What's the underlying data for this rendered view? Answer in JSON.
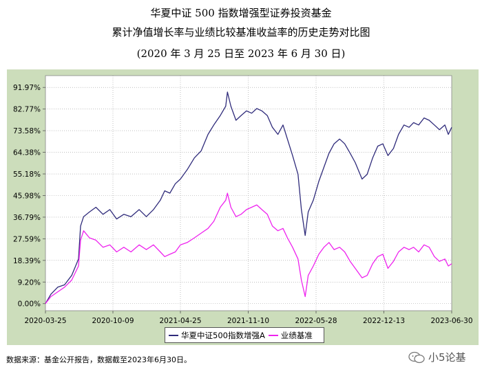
{
  "titles": {
    "line1": "华夏中证 500 指数增强型证券投资基金",
    "line2": "累计净值增长率与业绩比较基准收益率的历史走势对比图",
    "line3": "(2020 年 3 月 25 日至 2023 年 6 月 30 日)"
  },
  "source_note": "数据来源：基金公开报告，数据截至2023年6月30日。",
  "watermark": "小5论基",
  "colors": {
    "fund": "#2e2a7a",
    "benchmark": "#ee22ee",
    "plot_bg": "#ffffff",
    "frame_bg": "#ccddbb"
  },
  "chart_data": {
    "type": "line",
    "title": "",
    "xlabel": "",
    "ylabel": "",
    "x_range": [
      "2020-03-25",
      "2023-06-30"
    ],
    "ylim": [
      -3,
      97
    ],
    "y_ticks": [
      "0.00%",
      "9.20%",
      "18.39%",
      "27.59%",
      "36.79%",
      "45.98%",
      "55.18%",
      "64.38%",
      "73.58%",
      "82.77%",
      "91.97%"
    ],
    "y_tick_values": [
      0,
      9.2,
      18.39,
      27.59,
      36.79,
      45.98,
      55.18,
      64.38,
      73.58,
      82.77,
      91.97
    ],
    "x_ticks": [
      "2020-03-25",
      "2020-10-09",
      "2021-04-25",
      "2021-11-10",
      "2022-05-28",
      "2022-12-13",
      "2023-06-30"
    ],
    "grid": true,
    "legend": "bottom-center",
    "series": [
      {
        "name": "华夏中证500指数增强A",
        "color": "#2e2a7a",
        "points": [
          [
            "2020-03-25",
            0
          ],
          [
            "2020-04-10",
            4
          ],
          [
            "2020-04-30",
            7
          ],
          [
            "2020-05-20",
            8
          ],
          [
            "2020-06-10",
            12
          ],
          [
            "2020-06-30",
            19
          ],
          [
            "2020-07-06",
            33
          ],
          [
            "2020-07-15",
            37
          ],
          [
            "2020-08-01",
            39
          ],
          [
            "2020-08-20",
            41
          ],
          [
            "2020-09-10",
            38
          ],
          [
            "2020-09-30",
            40
          ],
          [
            "2020-10-20",
            36
          ],
          [
            "2020-11-10",
            38
          ],
          [
            "2020-12-01",
            37
          ],
          [
            "2020-12-25",
            40
          ],
          [
            "2021-01-15",
            37
          ],
          [
            "2021-02-05",
            40
          ],
          [
            "2021-02-25",
            44
          ],
          [
            "2021-03-10",
            48
          ],
          [
            "2021-03-25",
            47
          ],
          [
            "2021-04-10",
            51
          ],
          [
            "2021-04-25",
            53
          ],
          [
            "2021-05-15",
            57
          ],
          [
            "2021-06-05",
            62
          ],
          [
            "2021-06-25",
            65
          ],
          [
            "2021-07-15",
            72
          ],
          [
            "2021-08-01",
            76
          ],
          [
            "2021-08-20",
            80
          ],
          [
            "2021-09-05",
            84
          ],
          [
            "2021-09-10",
            90
          ],
          [
            "2021-09-20",
            84
          ],
          [
            "2021-10-05",
            78
          ],
          [
            "2021-10-20",
            80
          ],
          [
            "2021-11-05",
            82
          ],
          [
            "2021-11-20",
            81
          ],
          [
            "2021-12-05",
            83
          ],
          [
            "2021-12-20",
            82
          ],
          [
            "2022-01-05",
            80
          ],
          [
            "2022-01-20",
            75
          ],
          [
            "2022-02-05",
            72
          ],
          [
            "2022-02-20",
            76
          ],
          [
            "2022-03-05",
            70
          ],
          [
            "2022-03-20",
            63
          ],
          [
            "2022-04-05",
            55
          ],
          [
            "2022-04-15",
            40
          ],
          [
            "2022-04-26",
            29
          ],
          [
            "2022-05-05",
            39
          ],
          [
            "2022-05-20",
            44
          ],
          [
            "2022-06-05",
            52
          ],
          [
            "2022-06-20",
            58
          ],
          [
            "2022-07-05",
            64
          ],
          [
            "2022-07-20",
            68
          ],
          [
            "2022-08-05",
            70
          ],
          [
            "2022-08-20",
            68
          ],
          [
            "2022-09-05",
            64
          ],
          [
            "2022-09-20",
            60
          ],
          [
            "2022-10-10",
            53
          ],
          [
            "2022-10-25",
            55
          ],
          [
            "2022-11-10",
            62
          ],
          [
            "2022-11-25",
            67
          ],
          [
            "2022-12-10",
            68
          ],
          [
            "2022-12-25",
            63
          ],
          [
            "2023-01-10",
            66
          ],
          [
            "2023-01-25",
            72
          ],
          [
            "2023-02-10",
            76
          ],
          [
            "2023-02-25",
            75
          ],
          [
            "2023-03-10",
            77
          ],
          [
            "2023-03-25",
            76
          ],
          [
            "2023-04-10",
            79
          ],
          [
            "2023-04-25",
            78
          ],
          [
            "2023-05-10",
            76
          ],
          [
            "2023-05-25",
            74
          ],
          [
            "2023-06-10",
            76
          ],
          [
            "2023-06-20",
            72
          ],
          [
            "2023-06-30",
            75
          ]
        ]
      },
      {
        "name": "业绩基准",
        "color": "#ee22ee",
        "points": [
          [
            "2020-03-25",
            0
          ],
          [
            "2020-04-10",
            3
          ],
          [
            "2020-04-30",
            5
          ],
          [
            "2020-05-20",
            7
          ],
          [
            "2020-06-10",
            10
          ],
          [
            "2020-06-30",
            16
          ],
          [
            "2020-07-06",
            27
          ],
          [
            "2020-07-15",
            31
          ],
          [
            "2020-08-01",
            28
          ],
          [
            "2020-08-20",
            27
          ],
          [
            "2020-09-10",
            24
          ],
          [
            "2020-09-30",
            25
          ],
          [
            "2020-10-20",
            22
          ],
          [
            "2020-11-10",
            24
          ],
          [
            "2020-12-01",
            22
          ],
          [
            "2020-12-25",
            25
          ],
          [
            "2021-01-15",
            23
          ],
          [
            "2021-02-05",
            25
          ],
          [
            "2021-02-25",
            22
          ],
          [
            "2021-03-10",
            20
          ],
          [
            "2021-03-25",
            21
          ],
          [
            "2021-04-10",
            22
          ],
          [
            "2021-04-25",
            25
          ],
          [
            "2021-05-15",
            26
          ],
          [
            "2021-06-05",
            28
          ],
          [
            "2021-06-25",
            30
          ],
          [
            "2021-07-15",
            32
          ],
          [
            "2021-08-01",
            35
          ],
          [
            "2021-08-20",
            41
          ],
          [
            "2021-09-05",
            44
          ],
          [
            "2021-09-10",
            47
          ],
          [
            "2021-09-20",
            41
          ],
          [
            "2021-10-05",
            37
          ],
          [
            "2021-10-20",
            38
          ],
          [
            "2021-11-05",
            40
          ],
          [
            "2021-11-20",
            41
          ],
          [
            "2021-12-05",
            42
          ],
          [
            "2021-12-20",
            40
          ],
          [
            "2022-01-05",
            38
          ],
          [
            "2022-01-20",
            33
          ],
          [
            "2022-02-05",
            31
          ],
          [
            "2022-02-20",
            32
          ],
          [
            "2022-03-05",
            28
          ],
          [
            "2022-03-20",
            24
          ],
          [
            "2022-04-05",
            19
          ],
          [
            "2022-04-15",
            10
          ],
          [
            "2022-04-26",
            3
          ],
          [
            "2022-05-05",
            12
          ],
          [
            "2022-05-20",
            16
          ],
          [
            "2022-06-05",
            21
          ],
          [
            "2022-06-20",
            24
          ],
          [
            "2022-07-05",
            26
          ],
          [
            "2022-07-20",
            23
          ],
          [
            "2022-08-05",
            24
          ],
          [
            "2022-08-20",
            22
          ],
          [
            "2022-09-05",
            18
          ],
          [
            "2022-09-20",
            15
          ],
          [
            "2022-10-10",
            11
          ],
          [
            "2022-10-25",
            12
          ],
          [
            "2022-11-10",
            17
          ],
          [
            "2022-11-25",
            20
          ],
          [
            "2022-12-10",
            21
          ],
          [
            "2022-12-25",
            15
          ],
          [
            "2023-01-10",
            18
          ],
          [
            "2023-01-25",
            22
          ],
          [
            "2023-02-10",
            24
          ],
          [
            "2023-02-25",
            23
          ],
          [
            "2023-03-10",
            24
          ],
          [
            "2023-03-25",
            22
          ],
          [
            "2023-04-10",
            25
          ],
          [
            "2023-04-25",
            24
          ],
          [
            "2023-05-10",
            20
          ],
          [
            "2023-05-25",
            18
          ],
          [
            "2023-06-10",
            19
          ],
          [
            "2023-06-20",
            16
          ],
          [
            "2023-06-30",
            17
          ]
        ]
      }
    ]
  }
}
